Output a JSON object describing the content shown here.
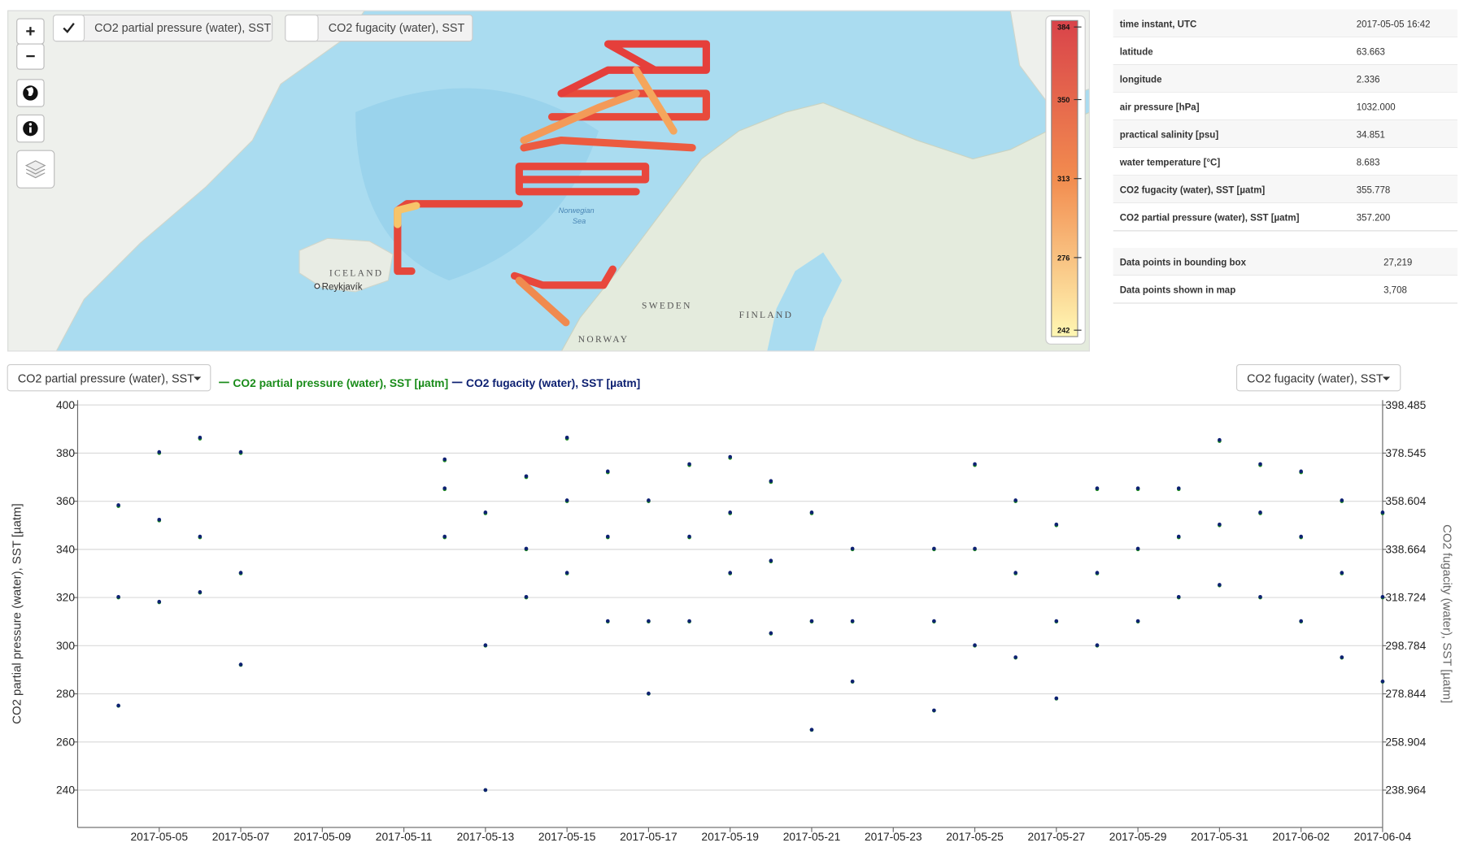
{
  "map": {
    "layers": [
      "CO2 partial pressure (water), SST",
      "CO2 fugacity (water), SST"
    ],
    "zoom_in": "+",
    "zoom_out": "−",
    "labels": [
      "ICELAND",
      "Reykjavík",
      "Norwegian",
      "Sea",
      "SWEDEN",
      "FINLAND",
      "NORWAY"
    ],
    "colorbar": {
      "ticks": [
        384,
        350,
        313,
        276,
        242
      ],
      "lim": [
        239,
        387
      ],
      "colors": [
        "#d9434a",
        "#f28c4f",
        "#fff7b3"
      ]
    }
  },
  "info": {
    "rows": [
      [
        "time instant, UTC",
        "2017-05-05 16:42"
      ],
      [
        "latitude",
        "63.663"
      ],
      [
        "longitude",
        "2.336"
      ],
      [
        "air pressure [hPa]",
        "1032.000"
      ],
      [
        "practical salinity [psu]",
        "34.851"
      ],
      [
        "water temperature [°C]",
        "8.683"
      ],
      [
        "CO2 fugacity (water), SST [µatm]",
        "355.778"
      ],
      [
        "CO2 partial pressure (water), SST [µatm]",
        "357.200"
      ]
    ],
    "stats": [
      [
        "Data points in bounding box",
        "27,219"
      ],
      [
        "Data points shown in map",
        "3,708"
      ]
    ]
  },
  "controls": {
    "left_select": "CO2 partial pressure (water), SST",
    "right_select": "CO2 fugacity (water), SST"
  },
  "chart_data": {
    "type": "scatter",
    "y_label": "CO2 partial pressure (water), SST [µatm]",
    "y2_label": "CO2 fugacity (water), SST [µatm]",
    "x": [
      "2017-05-04",
      "2017-05-04",
      "2017-05-04",
      "2017-05-05",
      "2017-05-05",
      "2017-05-05",
      "2017-05-06",
      "2017-05-06",
      "2017-05-06",
      "2017-05-07",
      "2017-05-07",
      "2017-05-07",
      "2017-05-12",
      "2017-05-12",
      "2017-05-12",
      "2017-05-13",
      "2017-05-13",
      "2017-05-13",
      "2017-05-14",
      "2017-05-14",
      "2017-05-14",
      "2017-05-15",
      "2017-05-15",
      "2017-05-15",
      "2017-05-16",
      "2017-05-16",
      "2017-05-16",
      "2017-05-17",
      "2017-05-17",
      "2017-05-17",
      "2017-05-18",
      "2017-05-18",
      "2017-05-18",
      "2017-05-19",
      "2017-05-19",
      "2017-05-19",
      "2017-05-20",
      "2017-05-20",
      "2017-05-20",
      "2017-05-21",
      "2017-05-21",
      "2017-05-21",
      "2017-05-22",
      "2017-05-22",
      "2017-05-22",
      "2017-05-24",
      "2017-05-24",
      "2017-05-24",
      "2017-05-25",
      "2017-05-25",
      "2017-05-25",
      "2017-05-26",
      "2017-05-26",
      "2017-05-26",
      "2017-05-27",
      "2017-05-27",
      "2017-05-27",
      "2017-05-28",
      "2017-05-28",
      "2017-05-28",
      "2017-05-29",
      "2017-05-29",
      "2017-05-29",
      "2017-05-30",
      "2017-05-30",
      "2017-05-30",
      "2017-05-31",
      "2017-05-31",
      "2017-05-31",
      "2017-06-01",
      "2017-06-01",
      "2017-06-01",
      "2017-06-02",
      "2017-06-02",
      "2017-06-02",
      "2017-06-03",
      "2017-06-03",
      "2017-06-03",
      "2017-06-04",
      "2017-06-04",
      "2017-06-04"
    ],
    "xlim": [
      "2017-05-03",
      "2017-06-04"
    ],
    "xticks": [
      "2017-05-05",
      "2017-05-07",
      "2017-05-09",
      "2017-05-11",
      "2017-05-13",
      "2017-05-15",
      "2017-05-17",
      "2017-05-19",
      "2017-05-21",
      "2017-05-23",
      "2017-05-25",
      "2017-05-27",
      "2017-05-29",
      "2017-05-31",
      "2017-06-02",
      "2017-06-04"
    ],
    "ylim": [
      224.5,
      402
    ],
    "yticks": [
      240,
      260,
      280,
      300,
      320,
      340,
      360,
      380,
      400
    ],
    "y2lim": [
      223.51,
      400.48
    ],
    "y2ticks": [
      238.964,
      258.904,
      278.844,
      298.784,
      318.724,
      338.664,
      358.604,
      378.545,
      398.485
    ],
    "grid": true,
    "series": [
      {
        "name": "CO2 partial pressure (water), SST [µatm]",
        "color": "#1a8c1a",
        "values": [
          275,
          320,
          358,
          318,
          352,
          380,
          322,
          345,
          386,
          292,
          330,
          380,
          345,
          365,
          377,
          240,
          300,
          355,
          320,
          340,
          370,
          330,
          360,
          386,
          310,
          345,
          372,
          280,
          310,
          360,
          310,
          345,
          375,
          330,
          355,
          378,
          305,
          335,
          368,
          265,
          310,
          355,
          285,
          310,
          340,
          273,
          310,
          340,
          300,
          340,
          375,
          295,
          330,
          360,
          278,
          310,
          350,
          300,
          330,
          365,
          310,
          340,
          365,
          320,
          345,
          365,
          325,
          350,
          385,
          320,
          355,
          375,
          310,
          345,
          372,
          295,
          330,
          360,
          285,
          320,
          355
        ]
      },
      {
        "name": "CO2 fugacity (water), SST [µatm]",
        "color": "#0e2172",
        "axis": "y2",
        "values": [
          274,
          319,
          357,
          317,
          351,
          379,
          321,
          344,
          385,
          291,
          329,
          379,
          344,
          364,
          376,
          239,
          299,
          354,
          319,
          339,
          369,
          329,
          359,
          385,
          309,
          344,
          371,
          279,
          309,
          359,
          309,
          344,
          374,
          329,
          354,
          377,
          304,
          334,
          367,
          264,
          309,
          354,
          284,
          309,
          339,
          272,
          309,
          339,
          299,
          339,
          374,
          294,
          329,
          359,
          277,
          309,
          349,
          299,
          329,
          364,
          309,
          339,
          364,
          319,
          344,
          364,
          324,
          349,
          384,
          319,
          354,
          374,
          309,
          344,
          371,
          294,
          329,
          359,
          284,
          319,
          354
        ]
      }
    ]
  }
}
